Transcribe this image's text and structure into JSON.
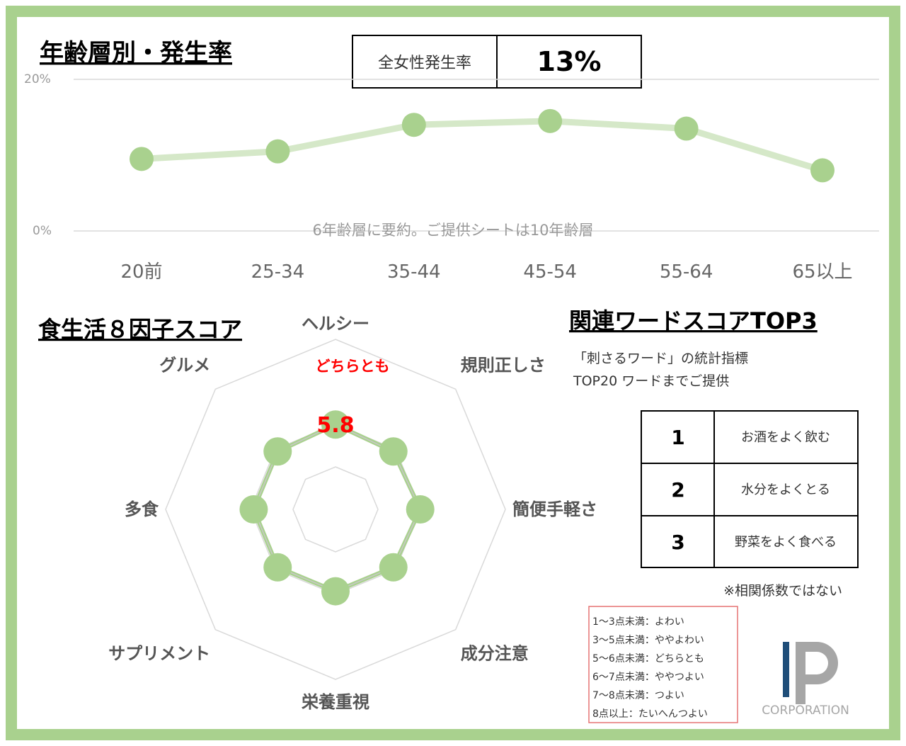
{
  "colors": {
    "frame": "#a9d18e",
    "series": "#a9d18e",
    "series_line": "#d5e8c8",
    "highlight": "#ff0000",
    "legend_border": "#e57373",
    "logo_blue": "#1f4e79",
    "logo_gray": "#a6a6a6"
  },
  "age_section": {
    "title": "年齢層別・発生率",
    "overall_label": "全女性発生率",
    "overall_value": "13%"
  },
  "radar_section": {
    "title": "食生活８因子スコア",
    "highlight_label": "どちらとも",
    "highlight_value": "5.8"
  },
  "words_section": {
    "title": "関連ワードスコアTOP3",
    "desc_line1": "「刺さるワード」の統計指標",
    "desc_line2": "TOP20 ワードまでご提供",
    "rows": [
      {
        "rank": "1",
        "word": "お酒をよく飲む"
      },
      {
        "rank": "2",
        "word": "水分をよくとる"
      },
      {
        "rank": "3",
        "word": "野菜をよく食べる"
      }
    ],
    "note": "※相関係数ではない"
  },
  "score_legend": [
    "1～3点未満：よわい",
    "3～5点未満：ややよわい",
    "5～6点未満：どちらとも",
    "6～7点未満：ややつよい",
    "7～8点未満：つよい",
    "8点以上：たいへんつよい"
  ],
  "logo": {
    "text": "CORPORATION"
  },
  "chart_data": [
    {
      "type": "line",
      "categories": [
        "20前",
        "25-34",
        "35-44",
        "45-54",
        "55-64",
        "65以上"
      ],
      "series": [
        {
          "values": [
            9.5,
            10.5,
            14,
            14.5,
            13.5,
            8
          ]
        }
      ],
      "ylim": [
        0,
        20
      ],
      "yticks": [
        "0%",
        "20%"
      ],
      "grid": true,
      "annotation": "6年齢層に要約。ご提供シートは10年齢層"
    },
    {
      "type": "radar",
      "categories": [
        "ヘルシー",
        "規則正しさ",
        "簡便手軽さ",
        "成分注意",
        "栄養重視",
        "サプリメント",
        "多食",
        "グルメ"
      ],
      "series": [
        {
          "values": [
            5.8,
            5.6,
            5.8,
            5.6,
            5.6,
            5.6,
            5.6,
            5.6
          ]
        }
      ],
      "rlim": [
        0,
        10
      ]
    }
  ]
}
